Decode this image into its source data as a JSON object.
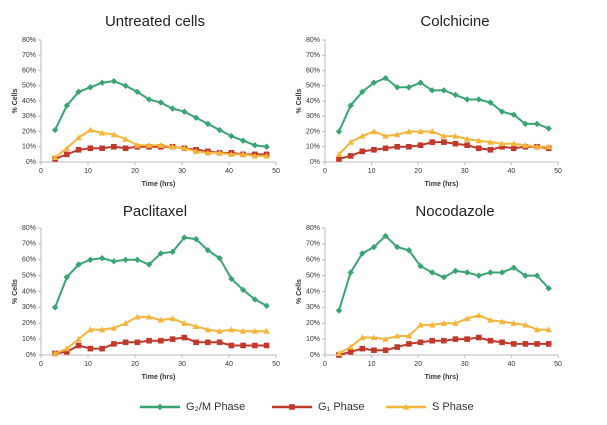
{
  "chart_data": [
    {
      "type": "line",
      "title": "Untreated cells",
      "x_label": "Time (hrs)",
      "y_label": "% Cells",
      "x": [
        3,
        5.5,
        8,
        10.5,
        13,
        15.5,
        18,
        20.5,
        23,
        25.5,
        28,
        30.5,
        33,
        35.5,
        38,
        40.5,
        43,
        45.5,
        48
      ],
      "xlim": [
        0,
        50
      ],
      "xticks": [
        0,
        10,
        20,
        30,
        40,
        50
      ],
      "ylim": [
        0,
        80
      ],
      "yticks": [
        {
          "value": 0,
          "label": "0%"
        },
        {
          "value": 10,
          "label": "10%"
        },
        {
          "value": 20,
          "label": "20%"
        },
        {
          "value": 30,
          "label": "30%"
        },
        {
          "value": 40,
          "label": "40%"
        },
        {
          "value": 50,
          "label": "50%"
        },
        {
          "value": 60,
          "label": "60%"
        },
        {
          "value": 70,
          "label": "70%"
        },
        {
          "value": 80,
          "label": "80%"
        }
      ],
      "series": [
        {
          "name": "G₂/M Phase",
          "color": "#3aa572",
          "marker": "diamond",
          "values": [
            21,
            37,
            46,
            49,
            52,
            53,
            50,
            46,
            41,
            39,
            35,
            33,
            29,
            25,
            21,
            17,
            14,
            11,
            10
          ]
        },
        {
          "name": "G₁ Phase",
          "color": "#c0392b",
          "marker": "square",
          "values": [
            2,
            5,
            8,
            9,
            9,
            10,
            9,
            10,
            10,
            10,
            10,
            9,
            8,
            7,
            6,
            6,
            5,
            5,
            5
          ]
        },
        {
          "name": "S Phase",
          "color": "#f5b53a",
          "marker": "triangle",
          "values": [
            3,
            9,
            16,
            21,
            19,
            18,
            15,
            11,
            11,
            11,
            10,
            9,
            7,
            6,
            6,
            5,
            5,
            4,
            4
          ]
        }
      ]
    },
    {
      "type": "line",
      "title": "Colchicine",
      "x_label": "Time (hrs)",
      "y_label": "% Cells",
      "x": [
        3,
        5.5,
        8,
        10.5,
        13,
        15.5,
        18,
        20.5,
        23,
        25.5,
        28,
        30.5,
        33,
        35.5,
        38,
        40.5,
        43,
        45.5,
        48
      ],
      "xlim": [
        0,
        50
      ],
      "xticks": [
        0,
        10,
        20,
        30,
        40,
        50
      ],
      "ylim": [
        0,
        80
      ],
      "yticks": [
        {
          "value": 0,
          "label": "0%"
        },
        {
          "value": 10,
          "label": "10%"
        },
        {
          "value": 20,
          "label": "20%"
        },
        {
          "value": 30,
          "label": "30%"
        },
        {
          "value": 40,
          "label": "40%"
        },
        {
          "value": 50,
          "label": "50%"
        },
        {
          "value": 60,
          "label": "60%"
        },
        {
          "value": 70,
          "label": "70%"
        },
        {
          "value": 80,
          "label": "80%"
        }
      ],
      "series": [
        {
          "name": "G₂/M Phase",
          "color": "#3aa572",
          "marker": "diamond",
          "values": [
            20,
            37,
            46,
            52,
            55,
            49,
            49,
            52,
            47,
            47,
            44,
            41,
            41,
            39,
            33,
            31,
            25,
            25,
            22
          ]
        },
        {
          "name": "G₁ Phase",
          "color": "#c0392b",
          "marker": "square",
          "values": [
            2,
            4,
            7,
            8,
            9,
            10,
            10,
            11,
            13,
            13,
            12,
            11,
            9,
            8,
            10,
            9,
            10,
            10,
            9
          ]
        },
        {
          "name": "S Phase",
          "color": "#f5b53a",
          "marker": "triangle",
          "values": [
            5,
            13,
            17,
            20,
            17,
            18,
            20,
            20,
            20,
            17,
            17,
            15,
            14,
            13,
            12,
            12,
            11,
            10,
            10
          ]
        }
      ]
    },
    {
      "type": "line",
      "title": "Paclitaxel",
      "x_label": "Time (hrs)",
      "y_label": "% Cells",
      "x": [
        3,
        5.5,
        8,
        10.5,
        13,
        15.5,
        18,
        20.5,
        23,
        25.5,
        28,
        30.5,
        33,
        35.5,
        38,
        40.5,
        43,
        45.5,
        48
      ],
      "xlim": [
        0,
        50
      ],
      "xticks": [
        0,
        10,
        20,
        30,
        40,
        50
      ],
      "ylim": [
        0,
        80
      ],
      "yticks": [
        {
          "value": 0,
          "label": "0%"
        },
        {
          "value": 10,
          "label": "10%"
        },
        {
          "value": 20,
          "label": "20%"
        },
        {
          "value": 30,
          "label": "30%"
        },
        {
          "value": 40,
          "label": "40%"
        },
        {
          "value": 50,
          "label": "50%"
        },
        {
          "value": 60,
          "label": "60%"
        },
        {
          "value": 70,
          "label": "70%"
        },
        {
          "value": 80,
          "label": "80%"
        }
      ],
      "series": [
        {
          "name": "G₂/M Phase",
          "color": "#3aa572",
          "marker": "diamond",
          "values": [
            30,
            49,
            57,
            60,
            61,
            59,
            60,
            60,
            57,
            64,
            65,
            74,
            73,
            66,
            61,
            48,
            41,
            35,
            31
          ]
        },
        {
          "name": "G₁ Phase",
          "color": "#c0392b",
          "marker": "square",
          "values": [
            1,
            2,
            6,
            4,
            4,
            7,
            8,
            8,
            9,
            9,
            10,
            11,
            8,
            8,
            8,
            6,
            6,
            6,
            6
          ]
        },
        {
          "name": "S Phase",
          "color": "#f5b53a",
          "marker": "triangle",
          "values": [
            1,
            4,
            10,
            16,
            16,
            17,
            20,
            24,
            24,
            22,
            23,
            20,
            18,
            16,
            15,
            16,
            15,
            15,
            15
          ]
        }
      ]
    },
    {
      "type": "line",
      "title": "Nocodazole",
      "x_label": "Time (hrs)",
      "y_label": "% Cells",
      "x": [
        3,
        5.5,
        8,
        10.5,
        13,
        15.5,
        18,
        20.5,
        23,
        25.5,
        28,
        30.5,
        33,
        35.5,
        38,
        40.5,
        43,
        45.5,
        48
      ],
      "xlim": [
        0,
        50
      ],
      "xticks": [
        0,
        10,
        20,
        30,
        40,
        50
      ],
      "ylim": [
        0,
        80
      ],
      "yticks": [
        {
          "value": 0,
          "label": "0%"
        },
        {
          "value": 10,
          "label": "10%"
        },
        {
          "value": 20,
          "label": "20%"
        },
        {
          "value": 30,
          "label": "30%"
        },
        {
          "value": 40,
          "label": "40%"
        },
        {
          "value": 50,
          "label": "50%"
        },
        {
          "value": 60,
          "label": "60%"
        },
        {
          "value": 70,
          "label": "70%"
        },
        {
          "value": 80,
          "label": "80%"
        }
      ],
      "series": [
        {
          "name": "G₂/M Phase",
          "color": "#3aa572",
          "marker": "diamond",
          "values": [
            28,
            52,
            64,
            68,
            75,
            68,
            66,
            56,
            52,
            49,
            53,
            52,
            50,
            52,
            52,
            55,
            50,
            50,
            42
          ]
        },
        {
          "name": "G₁ Phase",
          "color": "#c0392b",
          "marker": "square",
          "values": [
            0,
            2,
            4,
            3,
            3,
            5,
            7,
            8,
            9,
            9,
            10,
            10,
            11,
            9,
            8,
            7,
            7,
            7,
            7
          ]
        },
        {
          "name": "S Phase",
          "color": "#f5b53a",
          "marker": "triangle",
          "values": [
            1,
            5,
            11,
            11,
            10,
            12,
            12,
            19,
            19,
            20,
            20,
            23,
            25,
            22,
            21,
            20,
            19,
            16,
            16
          ]
        }
      ]
    }
  ]
}
